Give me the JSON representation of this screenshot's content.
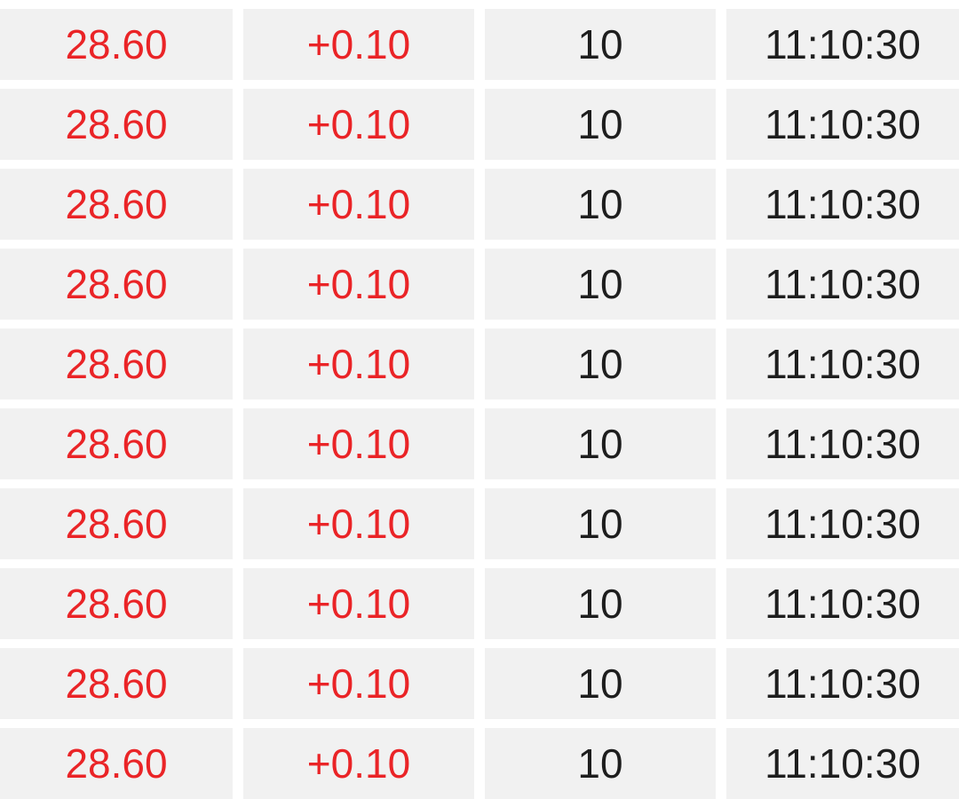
{
  "colors": {
    "up": "#ea2427",
    "text": "#1e1e1e",
    "cell_bg": "#f1f1f1",
    "gap": "#ffffff"
  },
  "trades": [
    {
      "price": "28.60",
      "change": "+0.10",
      "volume": "10",
      "time": "11:10:30"
    },
    {
      "price": "28.60",
      "change": "+0.10",
      "volume": "10",
      "time": "11:10:30"
    },
    {
      "price": "28.60",
      "change": "+0.10",
      "volume": "10",
      "time": "11:10:30"
    },
    {
      "price": "28.60",
      "change": "+0.10",
      "volume": "10",
      "time": "11:10:30"
    },
    {
      "price": "28.60",
      "change": "+0.10",
      "volume": "10",
      "time": "11:10:30"
    },
    {
      "price": "28.60",
      "change": "+0.10",
      "volume": "10",
      "time": "11:10:30"
    },
    {
      "price": "28.60",
      "change": "+0.10",
      "volume": "10",
      "time": "11:10:30"
    },
    {
      "price": "28.60",
      "change": "+0.10",
      "volume": "10",
      "time": "11:10:30"
    },
    {
      "price": "28.60",
      "change": "+0.10",
      "volume": "10",
      "time": "11:10:30"
    },
    {
      "price": "28.60",
      "change": "+0.10",
      "volume": "10",
      "time": "11:10:30"
    }
  ]
}
